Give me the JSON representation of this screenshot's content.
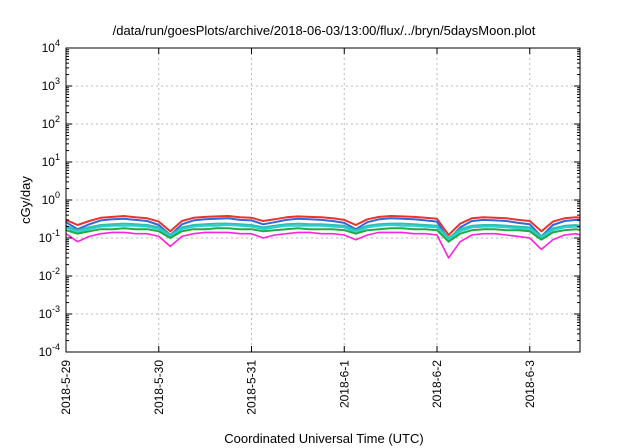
{
  "chart_data": {
    "type": "line",
    "title": "/data/run/goesPlots/archive/2018-06-03/13:00/flux/../bryn/5daysMoon.plot",
    "xlabel": "Coordinated Universal Time (UTC)",
    "ylabel": "cGy/day",
    "yscale": "log",
    "ylim": [
      0.0001,
      10000
    ],
    "yticks": [
      {
        "value": 0.0001,
        "base": "10",
        "exp": "-4"
      },
      {
        "value": 0.001,
        "base": "10",
        "exp": "-3"
      },
      {
        "value": 0.01,
        "base": "10",
        "exp": "-2"
      },
      {
        "value": 0.1,
        "base": "10",
        "exp": "-1"
      },
      {
        "value": 1,
        "base": "10",
        "exp": "0"
      },
      {
        "value": 10,
        "base": "10",
        "exp": "1"
      },
      {
        "value": 100,
        "base": "10",
        "exp": "2"
      },
      {
        "value": 1000,
        "base": "10",
        "exp": "3"
      },
      {
        "value": 10000,
        "base": "10",
        "exp": "4"
      }
    ],
    "xlim": [
      "2018-05-29",
      "2018-06-03 13:00"
    ],
    "xticks": [
      "2018-5-29",
      "2018-5-30",
      "2018-5-31",
      "2018-6-1",
      "2018-6-2",
      "2018-6-3"
    ],
    "grid": true,
    "x": [
      "2018-05-29 00:00",
      "2018-05-29 03:00",
      "2018-05-29 06:00",
      "2018-05-29 09:00",
      "2018-05-29 12:00",
      "2018-05-29 15:00",
      "2018-05-29 18:00",
      "2018-05-29 21:00",
      "2018-05-30 00:00",
      "2018-05-30 03:00",
      "2018-05-30 06:00",
      "2018-05-30 09:00",
      "2018-05-30 12:00",
      "2018-05-30 15:00",
      "2018-05-30 18:00",
      "2018-05-30 21:00",
      "2018-05-31 00:00",
      "2018-05-31 03:00",
      "2018-05-31 06:00",
      "2018-05-31 09:00",
      "2018-05-31 12:00",
      "2018-05-31 15:00",
      "2018-05-31 18:00",
      "2018-05-31 21:00",
      "2018-06-01 00:00",
      "2018-06-01 03:00",
      "2018-06-01 06:00",
      "2018-06-01 09:00",
      "2018-06-01 12:00",
      "2018-06-01 15:00",
      "2018-06-01 18:00",
      "2018-06-01 21:00",
      "2018-06-02 00:00",
      "2018-06-02 03:00",
      "2018-06-02 06:00",
      "2018-06-02 09:00",
      "2018-06-02 12:00",
      "2018-06-02 15:00",
      "2018-06-02 18:00",
      "2018-06-02 21:00",
      "2018-06-03 00:00",
      "2018-06-03 03:00",
      "2018-06-03 06:00",
      "2018-06-03 09:00",
      "2018-06-03 12:00",
      "2018-06-03 13:00"
    ],
    "series": [
      {
        "color": "#e8342c",
        "values": [
          0.3,
          0.22,
          0.28,
          0.34,
          0.36,
          0.38,
          0.35,
          0.33,
          0.27,
          0.15,
          0.28,
          0.34,
          0.36,
          0.37,
          0.38,
          0.35,
          0.34,
          0.28,
          0.31,
          0.35,
          0.37,
          0.36,
          0.35,
          0.33,
          0.3,
          0.22,
          0.31,
          0.36,
          0.38,
          0.37,
          0.36,
          0.34,
          0.32,
          0.12,
          0.24,
          0.33,
          0.35,
          0.34,
          0.33,
          0.3,
          0.28,
          0.15,
          0.27,
          0.33,
          0.35,
          0.34
        ]
      },
      {
        "color": "#3366dd",
        "values": [
          0.26,
          0.17,
          0.23,
          0.29,
          0.31,
          0.32,
          0.3,
          0.28,
          0.22,
          0.12,
          0.23,
          0.29,
          0.31,
          0.32,
          0.33,
          0.3,
          0.29,
          0.23,
          0.26,
          0.3,
          0.32,
          0.31,
          0.3,
          0.28,
          0.25,
          0.17,
          0.26,
          0.31,
          0.33,
          0.32,
          0.31,
          0.29,
          0.27,
          0.09,
          0.19,
          0.28,
          0.3,
          0.29,
          0.28,
          0.25,
          0.23,
          0.11,
          0.22,
          0.28,
          0.3,
          0.29
        ]
      },
      {
        "color": "#2fbfaa",
        "values": [
          0.21,
          0.16,
          0.19,
          0.22,
          0.23,
          0.24,
          0.23,
          0.22,
          0.19,
          0.12,
          0.19,
          0.22,
          0.23,
          0.24,
          0.24,
          0.23,
          0.22,
          0.19,
          0.21,
          0.23,
          0.24,
          0.23,
          0.23,
          0.22,
          0.21,
          0.16,
          0.21,
          0.23,
          0.24,
          0.24,
          0.23,
          0.22,
          0.21,
          0.1,
          0.17,
          0.21,
          0.22,
          0.22,
          0.21,
          0.2,
          0.19,
          0.11,
          0.18,
          0.21,
          0.22,
          0.21
        ]
      },
      {
        "color": "#2bd0d8",
        "values": [
          0.19,
          0.14,
          0.17,
          0.2,
          0.21,
          0.21,
          0.21,
          0.2,
          0.17,
          0.11,
          0.17,
          0.2,
          0.21,
          0.21,
          0.22,
          0.21,
          0.2,
          0.17,
          0.19,
          0.21,
          0.21,
          0.21,
          0.21,
          0.2,
          0.19,
          0.14,
          0.19,
          0.21,
          0.22,
          0.21,
          0.21,
          0.2,
          0.19,
          0.09,
          0.15,
          0.19,
          0.2,
          0.2,
          0.19,
          0.18,
          0.17,
          0.1,
          0.16,
          0.19,
          0.2,
          0.19
        ]
      },
      {
        "color": "#22aa44",
        "values": [
          0.16,
          0.13,
          0.15,
          0.17,
          0.17,
          0.18,
          0.17,
          0.17,
          0.15,
          0.1,
          0.15,
          0.17,
          0.17,
          0.18,
          0.18,
          0.17,
          0.17,
          0.15,
          0.16,
          0.17,
          0.18,
          0.17,
          0.17,
          0.17,
          0.16,
          0.13,
          0.16,
          0.17,
          0.18,
          0.18,
          0.17,
          0.17,
          0.16,
          0.08,
          0.13,
          0.16,
          0.17,
          0.17,
          0.16,
          0.16,
          0.15,
          0.09,
          0.14,
          0.16,
          0.17,
          0.16
        ]
      },
      {
        "color": "#ff22dd",
        "values": [
          0.13,
          0.08,
          0.11,
          0.13,
          0.14,
          0.14,
          0.13,
          0.13,
          0.11,
          0.06,
          0.11,
          0.13,
          0.14,
          0.14,
          0.14,
          0.13,
          0.13,
          0.1,
          0.12,
          0.13,
          0.14,
          0.14,
          0.13,
          0.13,
          0.12,
          0.09,
          0.12,
          0.14,
          0.14,
          0.14,
          0.13,
          0.13,
          0.12,
          0.03,
          0.08,
          0.12,
          0.13,
          0.13,
          0.12,
          0.11,
          0.1,
          0.05,
          0.09,
          0.12,
          0.13,
          0.12
        ]
      }
    ]
  }
}
